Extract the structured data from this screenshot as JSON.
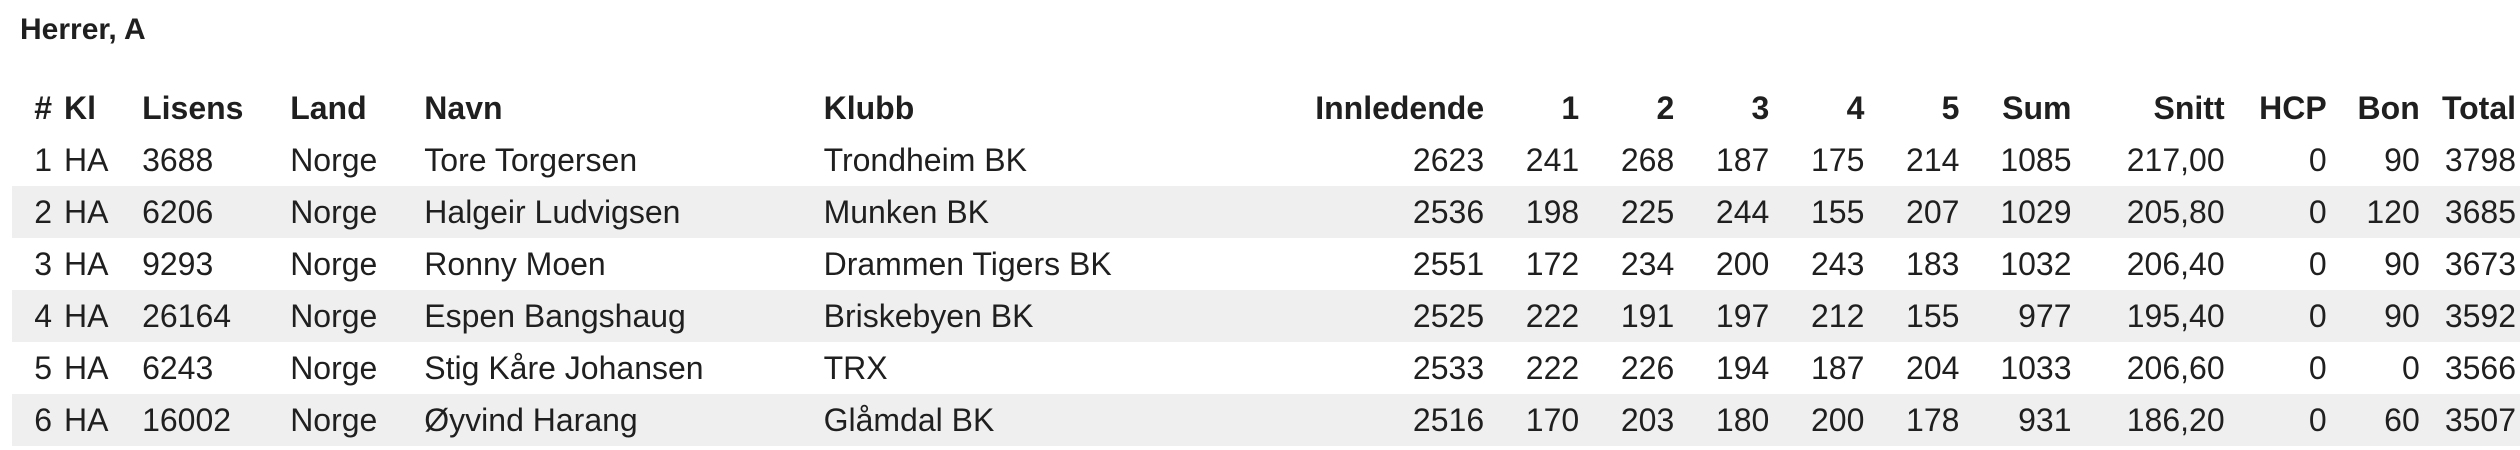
{
  "title": "Herrer, A",
  "columns": {
    "rank": "#",
    "kl": "Kl",
    "lisens": "Lisens",
    "land": "Land",
    "navn": "Navn",
    "klubb": "Klubb",
    "innledende": "Innledende",
    "g1": "1",
    "g2": "2",
    "g3": "3",
    "g4": "4",
    "g5": "5",
    "sum": "Sum",
    "snitt": "Snitt",
    "hcp": "HCP",
    "bon": "Bon",
    "total": "Total"
  },
  "rows": [
    {
      "rank": "1",
      "kl": "HA",
      "lisens": "3688",
      "land": "Norge",
      "navn": "Tore Torgersen",
      "klubb": "Trondheim BK",
      "innledende": "2623",
      "g1": "241",
      "g2": "268",
      "g3": "187",
      "g4": "175",
      "g5": "214",
      "sum": "1085",
      "snitt": "217,00",
      "hcp": "0",
      "bon": "90",
      "total": "3798"
    },
    {
      "rank": "2",
      "kl": "HA",
      "lisens": "6206",
      "land": "Norge",
      "navn": "Halgeir Ludvigsen",
      "klubb": "Munken BK",
      "innledende": "2536",
      "g1": "198",
      "g2": "225",
      "g3": "244",
      "g4": "155",
      "g5": "207",
      "sum": "1029",
      "snitt": "205,80",
      "hcp": "0",
      "bon": "120",
      "total": "3685"
    },
    {
      "rank": "3",
      "kl": "HA",
      "lisens": "9293",
      "land": "Norge",
      "navn": "Ronny Moen",
      "klubb": "Drammen Tigers BK",
      "innledende": "2551",
      "g1": "172",
      "g2": "234",
      "g3": "200",
      "g4": "243",
      "g5": "183",
      "sum": "1032",
      "snitt": "206,40",
      "hcp": "0",
      "bon": "90",
      "total": "3673"
    },
    {
      "rank": "4",
      "kl": "HA",
      "lisens": "26164",
      "land": "Norge",
      "navn": "Espen Bangshaug",
      "klubb": "Briskebyen BK",
      "innledende": "2525",
      "g1": "222",
      "g2": "191",
      "g3": "197",
      "g4": "212",
      "g5": "155",
      "sum": "977",
      "snitt": "195,40",
      "hcp": "0",
      "bon": "90",
      "total": "3592"
    },
    {
      "rank": "5",
      "kl": "HA",
      "lisens": "6243",
      "land": "Norge",
      "navn": "Stig Kåre Johansen",
      "klubb": "TRX",
      "innledende": "2533",
      "g1": "222",
      "g2": "226",
      "g3": "194",
      "g4": "187",
      "g5": "204",
      "sum": "1033",
      "snitt": "206,60",
      "hcp": "0",
      "bon": "0",
      "total": "3566"
    },
    {
      "rank": "6",
      "kl": "HA",
      "lisens": "16002",
      "land": "Norge",
      "navn": "Øyvind Harang",
      "klubb": "Glåmdal BK",
      "innledende": "2516",
      "g1": "170",
      "g2": "203",
      "g3": "180",
      "g4": "200",
      "g5": "178",
      "sum": "931",
      "snitt": "186,20",
      "hcp": "0",
      "bon": "60",
      "total": "3507"
    }
  ]
}
